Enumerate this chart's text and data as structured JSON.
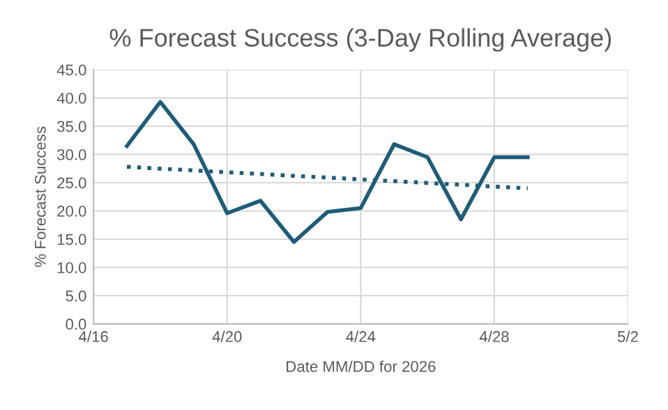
{
  "chart_data": {
    "type": "line",
    "title": "% Forecast Success (3-Day Rolling Average)",
    "xlabel": "Date MM/DD for 2026",
    "ylabel": "% Forecast Success",
    "xlim": [
      "2026-04-16",
      "2026-05-02"
    ],
    "xticks": [
      {
        "value": "2026-04-16",
        "label": "4/16"
      },
      {
        "value": "2026-04-20",
        "label": "4/20"
      },
      {
        "value": "2026-04-24",
        "label": "4/24"
      },
      {
        "value": "2026-04-28",
        "label": "4/28"
      },
      {
        "value": "2026-05-02",
        "label": "5/2"
      }
    ],
    "ylim": [
      0,
      45
    ],
    "yticks": [
      {
        "value": 0,
        "label": "0.0"
      },
      {
        "value": 5,
        "label": "5.0"
      },
      {
        "value": 10,
        "label": "10.0"
      },
      {
        "value": 15,
        "label": "15.0"
      },
      {
        "value": 20,
        "label": "20.0"
      },
      {
        "value": 25,
        "label": "25.0"
      },
      {
        "value": 30,
        "label": "30.0"
      },
      {
        "value": 35,
        "label": "35.0"
      },
      {
        "value": 40,
        "label": "40.0"
      },
      {
        "value": 45,
        "label": "45.0"
      }
    ],
    "grid": true,
    "series": [
      {
        "color": "#1f5c7a",
        "line_style": "solid",
        "x": [
          "2026-04-17",
          "2026-04-18",
          "2026-04-19",
          "2026-04-20",
          "2026-04-21",
          "2026-04-22",
          "2026-04-23",
          "2026-04-24",
          "2026-04-25",
          "2026-04-26",
          "2026-04-27",
          "2026-04-28",
          "2026-04-29"
        ],
        "values": [
          31.5,
          39.3,
          31.8,
          19.6,
          21.8,
          14.5,
          19.8,
          20.5,
          31.8,
          29.5,
          18.5,
          29.5,
          29.5
        ]
      },
      {
        "type": "line",
        "color": "#1f5c7a",
        "line_style": "dotted",
        "x": [
          "2026-04-17",
          "2026-04-29"
        ],
        "values": [
          27.8,
          24.0
        ]
      }
    ]
  }
}
